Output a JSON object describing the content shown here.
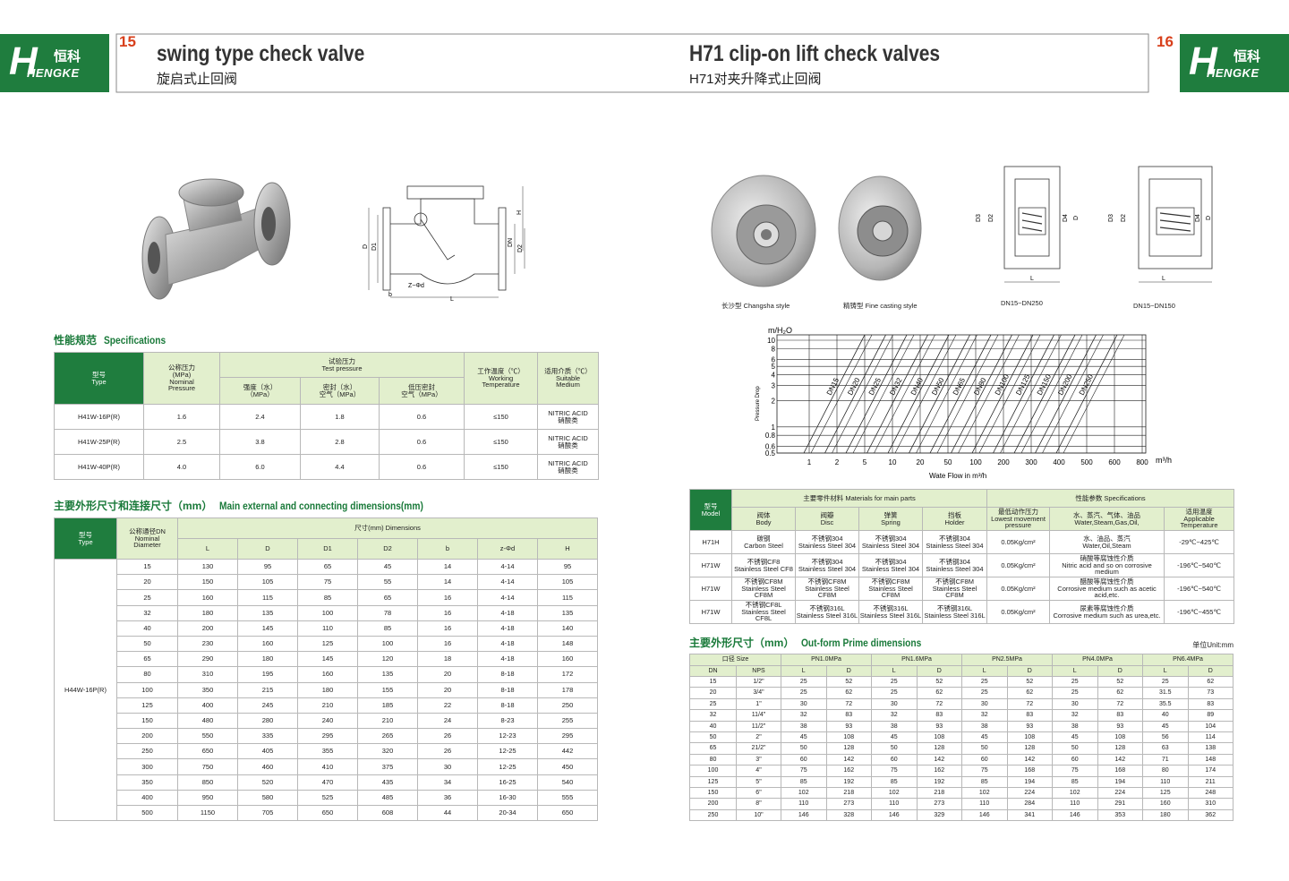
{
  "left_page": {
    "page_number": "15",
    "logo": {
      "cn": "恒科",
      "en": "HENGKE"
    },
    "title": "swing type check valve",
    "subtitle": "旋启式止回阀",
    "drawing_labels": [
      "D",
      "D1",
      "DN",
      "D2",
      "H",
      "b",
      "Z−Φd",
      "L"
    ],
    "specifications": {
      "heading_cn": "性能规范",
      "heading_en": "Specifications",
      "headers": {
        "type": [
          "型号",
          "Type"
        ],
        "nominal_pressure": [
          "公称压力",
          "(MPa)",
          "Nominal",
          "Pressure"
        ],
        "test_pressure": [
          "试验压力",
          "Test pressure"
        ],
        "strength": [
          "强度（水）",
          "（MPa）"
        ],
        "seal": [
          "密封（水）",
          "空气（MPa）"
        ],
        "low_seal": [
          "低压密封",
          "空气（MPa）"
        ],
        "temperature": [
          "工作温度（℃）",
          "Working",
          "Temperature"
        ],
        "medium": [
          "适用介质（℃）",
          "Suitable",
          "Medium"
        ]
      },
      "rows": [
        [
          "H41W-16P(R)",
          "1.6",
          "2.4",
          "1.8",
          "0.6",
          "≤150",
          [
            "NITRIC ACID",
            "硝酸类"
          ]
        ],
        [
          "H41W-25P(R)",
          "2.5",
          "3.8",
          "2.8",
          "0.6",
          "≤150",
          [
            "NITRIC ACID",
            "硝酸类"
          ]
        ],
        [
          "H41W-40P(R)",
          "4.0",
          "6.0",
          "4.4",
          "0.6",
          "≤150",
          [
            "NITRIC ACID",
            "硝酸类"
          ]
        ]
      ]
    },
    "dimensions": {
      "heading_cn": "主要外形尺寸和连接尺寸（mm）",
      "heading_en": "Main external and connecting dimensions(mm)",
      "headers": {
        "type": [
          "型号",
          "Type"
        ],
        "dn": [
          "公称通径DN",
          "Nominal",
          "Diameter"
        ],
        "dims": "尺寸(mm) Dimensions",
        "columns": [
          "L",
          "D",
          "D1",
          "D2",
          "b",
          "z-Φd",
          "H"
        ]
      },
      "type": "H44W-16P(R)",
      "rows": [
        [
          "15",
          "130",
          "95",
          "65",
          "45",
          "14",
          "4-14",
          "95"
        ],
        [
          "20",
          "150",
          "105",
          "75",
          "55",
          "14",
          "4-14",
          "105"
        ],
        [
          "25",
          "160",
          "115",
          "85",
          "65",
          "16",
          "4-14",
          "115"
        ],
        [
          "32",
          "180",
          "135",
          "100",
          "78",
          "16",
          "4-18",
          "135"
        ],
        [
          "40",
          "200",
          "145",
          "110",
          "85",
          "16",
          "4-18",
          "140"
        ],
        [
          "50",
          "230",
          "160",
          "125",
          "100",
          "16",
          "4-18",
          "148"
        ],
        [
          "65",
          "290",
          "180",
          "145",
          "120",
          "18",
          "4-18",
          "160"
        ],
        [
          "80",
          "310",
          "195",
          "160",
          "135",
          "20",
          "8-18",
          "172"
        ],
        [
          "100",
          "350",
          "215",
          "180",
          "155",
          "20",
          "8-18",
          "178"
        ],
        [
          "125",
          "400",
          "245",
          "210",
          "185",
          "22",
          "8-18",
          "250"
        ],
        [
          "150",
          "480",
          "280",
          "240",
          "210",
          "24",
          "8-23",
          "255"
        ],
        [
          "200",
          "550",
          "335",
          "295",
          "265",
          "26",
          "12-23",
          "295"
        ],
        [
          "250",
          "650",
          "405",
          "355",
          "320",
          "26",
          "12-25",
          "442"
        ],
        [
          "300",
          "750",
          "460",
          "410",
          "375",
          "30",
          "12-25",
          "450"
        ],
        [
          "350",
          "850",
          "520",
          "470",
          "435",
          "34",
          "16-25",
          "540"
        ],
        [
          "400",
          "950",
          "580",
          "525",
          "485",
          "36",
          "16-30",
          "555"
        ],
        [
          "500",
          "1150",
          "705",
          "650",
          "608",
          "44",
          "20-34",
          "650"
        ]
      ]
    }
  },
  "right_page": {
    "page_number": "16",
    "logo": {
      "cn": "恒科",
      "en": "HENGKE"
    },
    "title": "H71 clip-on lift check valves",
    "subtitle": "H71对夹升降式止回阀",
    "captions": [
      "长沙型 Changsha style",
      "精铸型 Fine casting style",
      "DN15~DN250",
      "DN15~DN150"
    ],
    "drawing_labels": [
      [
        "D3",
        "D2",
        "D4",
        "D",
        "L"
      ],
      [
        "D3",
        "D2",
        "D4",
        "D",
        "L"
      ]
    ],
    "materials": {
      "headers": {
        "model": [
          "型号",
          "Model"
        ],
        "parts": "主要零件材料 Materials for main parts",
        "specs": "性能参数 Specifications",
        "columns": [
          [
            "阀体",
            "Body"
          ],
          [
            "阀瓣",
            "Disc"
          ],
          [
            "弹簧",
            "Spring"
          ],
          [
            "挡板",
            "Holder"
          ],
          [
            "最低动作压力",
            "Lowest movement",
            "pressure"
          ],
          [
            "水、蒸汽、气体、油品",
            "Water,Steam,Gas,Oil,"
          ],
          [
            "适用温度",
            "Applicable",
            "Temperature"
          ]
        ]
      },
      "rows": [
        [
          "H71H",
          [
            "碳钢",
            "Carbon Steel"
          ],
          [
            "不锈钢304",
            "Stainless Steel 304"
          ],
          [
            "不锈钢304",
            "Stainless Steel 304"
          ],
          [
            "不锈钢304",
            "Stainless Steel 304"
          ],
          "0.05Kg/cm²",
          [
            "水、油品、蒸汽",
            "Water,Oil,Steam"
          ],
          "-29℃~425℃"
        ],
        [
          "H71W",
          [
            "不锈钢CF8",
            "Stainless Steel CF8"
          ],
          [
            "不锈钢304",
            "Stainless Steel 304"
          ],
          [
            "不锈钢304",
            "Stainless Steel 304"
          ],
          [
            "不锈钢304",
            "Stainless Steel 304"
          ],
          "0.05Kg/cm²",
          [
            "硝酸等腐蚀性介质",
            "Nitric acid and so on corrosive medium"
          ],
          "-196℃~540℃"
        ],
        [
          "H71W",
          [
            "不锈钢CF8M",
            "Stainless Steel CF8M"
          ],
          [
            "不锈钢CF8M",
            "Stainless Steel CF8M"
          ],
          [
            "不锈钢CF8M",
            "Stainless Steel CF8M"
          ],
          [
            "不锈钢CF8M",
            "Stainless Steel CF8M"
          ],
          "0.05Kg/cm²",
          [
            "醋酸等腐蚀性介质",
            "Corrosive medium such as acetic acid,etc."
          ],
          "-196℃~540℃"
        ],
        [
          "H71W",
          [
            "不锈钢CF8L",
            "Stainless Steel CF8L"
          ],
          [
            "不锈钢316L",
            "Stainless Steel 316L"
          ],
          [
            "不锈钢316L",
            "Stainless Steel 316L"
          ],
          [
            "不锈钢316L",
            "Stainless Steel 316L"
          ],
          "0.05Kg/cm²",
          [
            "尿素等腐蚀性介质",
            "Corrosive medium such as urea,etc."
          ],
          "-196℃~455℃"
        ]
      ]
    },
    "outform": {
      "heading_cn": "主要外形尺寸（mm）",
      "heading_en": "Out-form Prime dimensions",
      "unit": "单位Unit:mm",
      "headers": {
        "size": "口径 Size",
        "pressures": [
          "PN1.0MPa",
          "PN1.6MPa",
          "PN2.5MPa",
          "PN4.0MPa",
          "PN6.4MPa"
        ],
        "columns": [
          "DN",
          "NPS",
          "L",
          "D",
          "L",
          "D",
          "L",
          "D",
          "L",
          "D",
          "L",
          "D"
        ]
      },
      "rows": [
        [
          "15",
          "1/2\"",
          "25",
          "52",
          "25",
          "52",
          "25",
          "52",
          "25",
          "52",
          "25",
          "62"
        ],
        [
          "20",
          "3/4\"",
          "25",
          "62",
          "25",
          "62",
          "25",
          "62",
          "25",
          "62",
          "31.5",
          "73"
        ],
        [
          "25",
          "1\"",
          "30",
          "72",
          "30",
          "72",
          "30",
          "72",
          "30",
          "72",
          "35.5",
          "83"
        ],
        [
          "32",
          "11/4\"",
          "32",
          "83",
          "32",
          "83",
          "32",
          "83",
          "32",
          "83",
          "40",
          "89"
        ],
        [
          "40",
          "11/2\"",
          "38",
          "93",
          "38",
          "93",
          "38",
          "93",
          "38",
          "93",
          "45",
          "104"
        ],
        [
          "50",
          "2\"",
          "45",
          "108",
          "45",
          "108",
          "45",
          "108",
          "45",
          "108",
          "56",
          "114"
        ],
        [
          "65",
          "21/2\"",
          "50",
          "128",
          "50",
          "128",
          "50",
          "128",
          "50",
          "128",
          "63",
          "138"
        ],
        [
          "80",
          "3\"",
          "60",
          "142",
          "60",
          "142",
          "60",
          "142",
          "60",
          "142",
          "71",
          "148"
        ],
        [
          "100",
          "4\"",
          "75",
          "162",
          "75",
          "162",
          "75",
          "168",
          "75",
          "168",
          "80",
          "174"
        ],
        [
          "125",
          "5\"",
          "85",
          "192",
          "85",
          "192",
          "85",
          "194",
          "85",
          "194",
          "110",
          "211"
        ],
        [
          "150",
          "6\"",
          "102",
          "218",
          "102",
          "218",
          "102",
          "224",
          "102",
          "224",
          "125",
          "248"
        ],
        [
          "200",
          "8\"",
          "110",
          "273",
          "110",
          "273",
          "110",
          "284",
          "110",
          "291",
          "160",
          "310"
        ],
        [
          "250",
          "10\"",
          "146",
          "328",
          "146",
          "329",
          "146",
          "341",
          "146",
          "353",
          "180",
          "362"
        ]
      ]
    }
  },
  "chart_data": {
    "type": "line",
    "y_unit": "m/H₂O",
    "ylabel": "Pressure Drop",
    "x_unit": "m³/h",
    "xlabel": "Wate Flow in m³/h",
    "log_y": true,
    "ylim": [
      0.5,
      10
    ],
    "yticks": [
      10,
      8,
      6,
      5,
      4,
      3,
      2,
      1,
      0.8,
      0.6,
      0.5
    ],
    "categories": [
      1,
      2,
      5,
      10,
      20,
      50,
      100,
      200,
      300,
      400,
      500,
      600,
      800
    ],
    "grid": true,
    "color": "#222222",
    "line_labels": [
      "DN15",
      "DN20",
      "DN25",
      "DN32",
      "DN40",
      "DN50",
      "DN65",
      "DN80",
      "DN100",
      "DN125",
      "DN150",
      "DN200",
      "DN250"
    ]
  }
}
